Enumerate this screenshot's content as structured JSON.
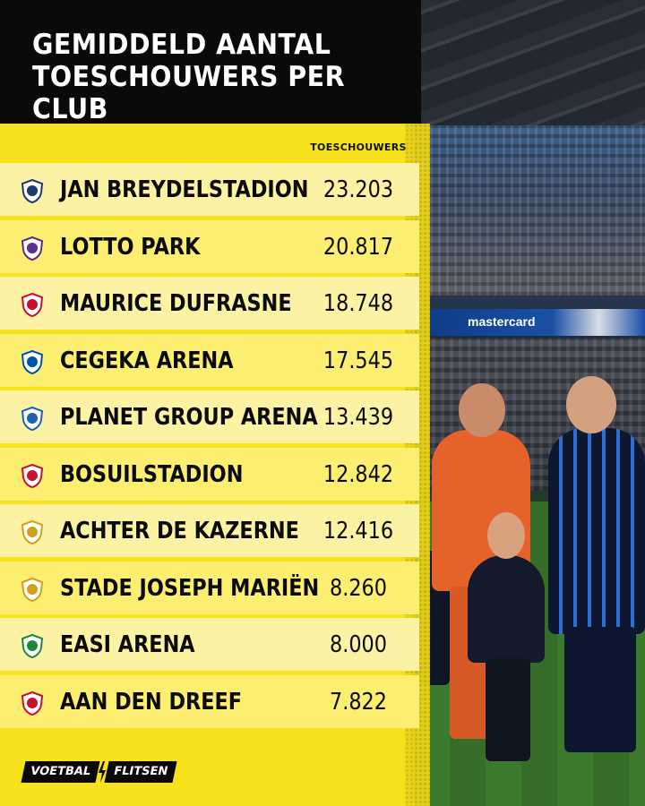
{
  "title_lines": [
    "GEMIDDELD AANTAL",
    "TOESCHOUWERS PER CLUB"
  ],
  "column_header": "TOESCHOUWERS",
  "rows": [
    {
      "name": "JAN BREYDELSTADION",
      "value": "23.203",
      "logo": "club-brugge-crest-icon",
      "color": "#1b3a6b"
    },
    {
      "name": "LOTTO PARK",
      "value": "20.817",
      "logo": "anderlecht-crest-icon",
      "color": "#5b2d8c"
    },
    {
      "name": "MAURICE DUFRASNE",
      "value": "18.748",
      "logo": "standard-crest-icon",
      "color": "#c8102e"
    },
    {
      "name": "CEGEKA ARENA",
      "value": "17.545",
      "logo": "genk-crest-icon",
      "color": "#0054a6"
    },
    {
      "name": "PLANET GROUP ARENA",
      "value": "13.439",
      "logo": "kaa-gent-crest-icon",
      "color": "#1c63b7"
    },
    {
      "name": "BOSUILSTADION",
      "value": "12.842",
      "logo": "antwerp-crest-icon",
      "color": "#c8102e"
    },
    {
      "name": "ACHTER DE KAZERNE",
      "value": "12.416",
      "logo": "mechelen-crest-icon",
      "color": "#d4a017"
    },
    {
      "name": "STADE JOSEPH MARIËN",
      "value": "8.260",
      "logo": "union-sg-crest-icon",
      "color": "#d4a017"
    },
    {
      "name": "EASI ARENA",
      "value": "8.000",
      "logo": "raal-crest-icon",
      "color": "#1a8a3a"
    },
    {
      "name": "AAN DEN DREEF",
      "value": "7.822",
      "logo": "ohl-crest-icon",
      "color": "#c8102e"
    }
  ],
  "chart_data": {
    "type": "table",
    "title": "GEMIDDELD AANTAL TOESCHOUWERS PER CLUB",
    "columns": [
      "",
      "TOESCHOUWERS"
    ],
    "categories": [
      "JAN BREYDELSTADION",
      "LOTTO PARK",
      "MAURICE DUFRASNE",
      "CEGEKA ARENA",
      "PLANET GROUP ARENA",
      "BOSUILSTADION",
      "ACHTER DE KAZERNE",
      "STADE JOSEPH MARIËN",
      "EASI ARENA",
      "AAN DEN DREEF"
    ],
    "values": [
      23203,
      20817,
      18748,
      17545,
      13439,
      12842,
      12416,
      8260,
      8000,
      7822
    ]
  },
  "photo": {
    "sponsor_board": "mastercard"
  },
  "brand": {
    "part1": "VOETBAL",
    "part2": "FLITSEN"
  },
  "colors": {
    "accent_yellow": "#f7e31c",
    "header_black": "#0a0a0a"
  }
}
